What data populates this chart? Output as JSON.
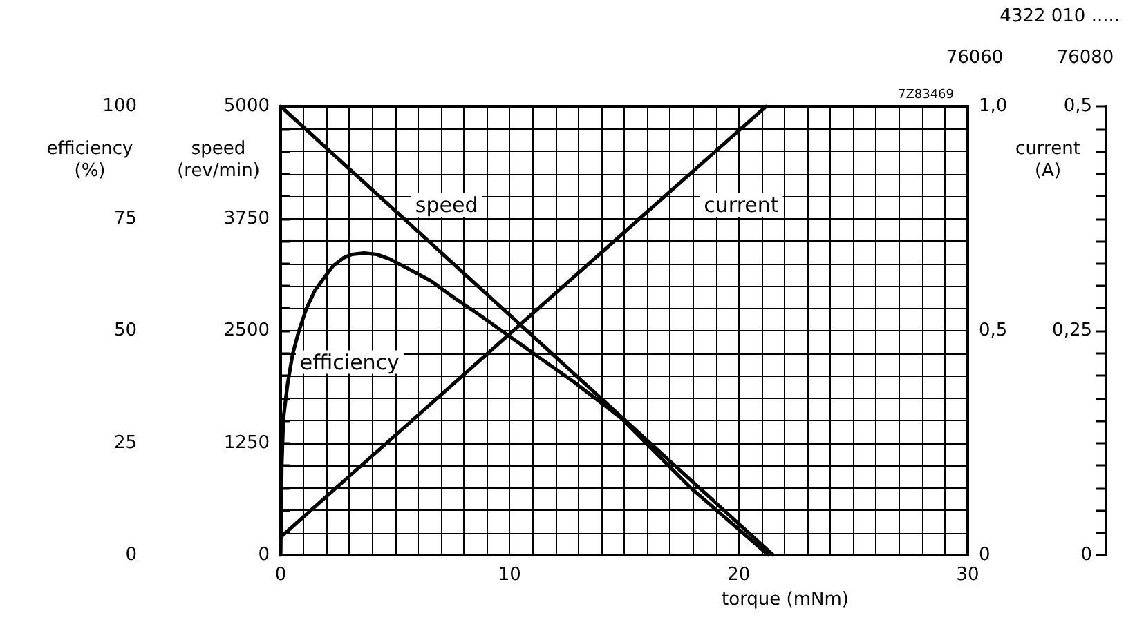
{
  "chart_data": {
    "type": "line",
    "xlabel": "torque (mNm)",
    "ylabel": "efficiency (%)",
    "y2label": "speed (rev/min)",
    "y3label": "current (A)",
    "annotations": [
      "7Z83469",
      "4322 010 .....",
      "76060",
      "76080",
      "0",
      "0,25",
      "0,5"
    ],
    "xlim": [
      0,
      30
    ],
    "xticks": [
      0,
      {
        "value": 1,
        "label": null
      },
      {
        "value": 2,
        "label": null
      },
      {
        "value": 3,
        "label": null
      },
      {
        "value": 4,
        "label": null
      },
      {
        "value": 5,
        "label": null
      },
      {
        "value": 6,
        "label": null
      },
      {
        "value": 7,
        "label": null
      },
      {
        "value": 8,
        "label": null
      },
      {
        "value": 9,
        "label": null
      },
      10,
      {
        "value": 11,
        "label": null
      },
      {
        "value": 12,
        "label": null
      },
      {
        "value": 13,
        "label": null
      },
      {
        "value": 14,
        "label": null
      },
      {
        "value": 15,
        "label": null
      },
      {
        "value": 16,
        "label": null
      },
      {
        "value": 17,
        "label": null
      },
      {
        "value": 18,
        "label": null
      },
      {
        "value": 19,
        "label": null
      },
      20,
      {
        "value": 21,
        "label": null
      },
      {
        "value": 22,
        "label": null
      },
      {
        "value": 23,
        "label": null
      },
      {
        "value": 24,
        "label": null
      },
      {
        "value": 25,
        "label": null
      },
      {
        "value": 26,
        "label": null
      },
      {
        "value": 27,
        "label": null
      },
      {
        "value": 28,
        "label": null
      },
      {
        "value": 29,
        "label": null
      },
      30
    ],
    "ylim": [
      0,
      100
    ],
    "yticks": [
      0,
      {
        "value": 5,
        "label": null
      },
      {
        "value": 10,
        "label": null
      },
      {
        "value": 15,
        "label": null
      },
      {
        "value": 20,
        "label": null
      },
      25,
      {
        "value": 30,
        "label": null
      },
      {
        "value": 35,
        "label": null
      },
      {
        "value": 40,
        "label": null
      },
      {
        "value": 45,
        "label": null
      },
      50,
      {
        "value": 55,
        "label": null
      },
      {
        "value": 60,
        "label": null
      },
      {
        "value": 65,
        "label": null
      },
      {
        "value": 70,
        "label": null
      },
      75,
      {
        "value": 80,
        "label": null
      },
      {
        "value": 85,
        "label": null
      },
      {
        "value": 90,
        "label": null
      },
      {
        "value": 95,
        "label": null
      },
      100
    ],
    "y2lim": [
      0,
      5000
    ],
    "y2ticks": [
      0,
      1250,
      2500,
      3750,
      5000
    ],
    "y3lim": [
      0,
      1
    ],
    "y3ticks": [
      0,
      {
        "value": 0.5,
        "label": "0,5"
      },
      {
        "value": 1,
        "label": "1,0"
      }
    ],
    "grid": true,
    "legend": false,
    "marker": "none",
    "line_style": "solid",
    "series": [
      {
        "name": "efficiency",
        "color": "#000000",
        "axis": "y",
        "x": [
          0,
          0.05,
          0.12,
          0.3,
          0.52,
          0.8,
          1.13,
          1.5,
          1.93,
          2.3,
          2.74,
          3.1,
          3.64,
          4.2,
          4.75,
          5.5,
          6.56,
          7.5,
          8.57,
          9.98,
          11.3,
          12.8,
          14.9,
          17.9,
          21.3
        ],
        "values": [
          0,
          20,
          30.5,
          38,
          44.7,
          50,
          55,
          59,
          62,
          64.5,
          66.2,
          67,
          67.3,
          67,
          66,
          64,
          61.1,
          57.6,
          53.9,
          48.8,
          44,
          38.6,
          30.4,
          15,
          0
        ]
      },
      {
        "name": "speed",
        "color": "#000000",
        "axis": "y2",
        "x": [
          0,
          21.5
        ],
        "values": [
          5000,
          0
        ]
      },
      {
        "name": "current",
        "color": "#000000",
        "axis": "y3",
        "x": [
          0,
          21.2
        ],
        "values": [
          0.04,
          1
        ]
      }
    ]
  }
}
